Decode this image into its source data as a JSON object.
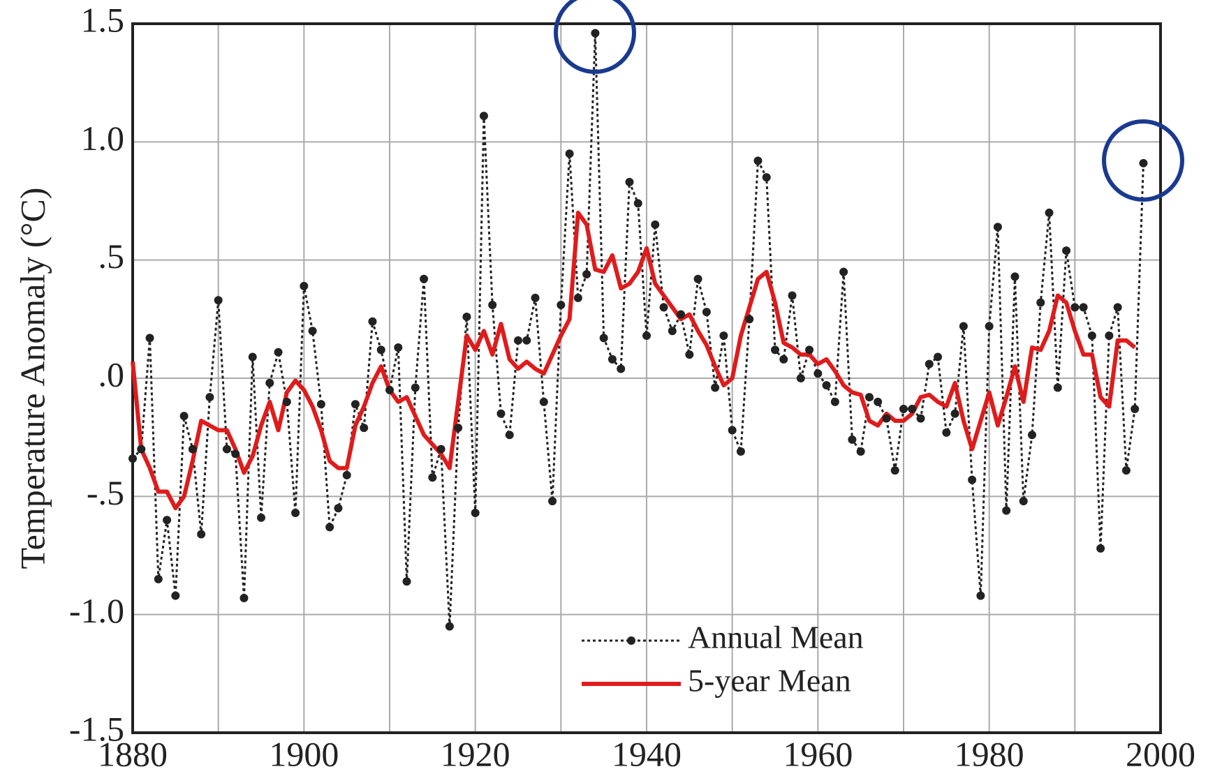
{
  "chart_data": {
    "type": "line",
    "ylabel": "Temperature Anomaly (°C)",
    "x": [
      1880,
      1881,
      1882,
      1883,
      1884,
      1885,
      1886,
      1887,
      1888,
      1889,
      1890,
      1891,
      1892,
      1893,
      1894,
      1895,
      1896,
      1897,
      1898,
      1899,
      1900,
      1901,
      1902,
      1903,
      1904,
      1905,
      1906,
      1907,
      1908,
      1909,
      1910,
      1911,
      1912,
      1913,
      1914,
      1915,
      1916,
      1917,
      1918,
      1919,
      1920,
      1921,
      1922,
      1923,
      1924,
      1925,
      1926,
      1927,
      1928,
      1929,
      1930,
      1931,
      1932,
      1933,
      1934,
      1935,
      1936,
      1937,
      1938,
      1939,
      1940,
      1941,
      1942,
      1943,
      1944,
      1945,
      1946,
      1947,
      1948,
      1949,
      1950,
      1951,
      1952,
      1953,
      1954,
      1955,
      1956,
      1957,
      1958,
      1959,
      1960,
      1961,
      1962,
      1963,
      1964,
      1965,
      1966,
      1967,
      1968,
      1969,
      1970,
      1971,
      1972,
      1973,
      1974,
      1975,
      1976,
      1977,
      1978,
      1979,
      1980,
      1981,
      1982,
      1983,
      1984,
      1985,
      1986,
      1987,
      1988,
      1989,
      1990,
      1991,
      1992,
      1993,
      1994,
      1995,
      1996,
      1997,
      1998
    ],
    "series": [
      {
        "name": "Annual Mean",
        "color": "#222222",
        "values": [
          -0.34,
          -0.3,
          0.17,
          -0.85,
          -0.6,
          -0.92,
          -0.16,
          -0.3,
          -0.66,
          -0.08,
          0.33,
          -0.3,
          -0.32,
          -0.93,
          0.09,
          -0.59,
          -0.02,
          0.11,
          -0.1,
          -0.57,
          0.39,
          0.2,
          -0.11,
          -0.63,
          -0.55,
          -0.41,
          -0.11,
          -0.21,
          0.24,
          0.12,
          -0.05,
          0.13,
          -0.86,
          -0.04,
          0.42,
          -0.42,
          -0.3,
          -1.05,
          -0.21,
          0.26,
          -0.57,
          1.11,
          0.31,
          -0.15,
          -0.24,
          0.16,
          0.16,
          0.34,
          -0.1,
          -0.52,
          0.31,
          0.95,
          0.34,
          0.44,
          1.46,
          0.17,
          0.08,
          0.04,
          0.83,
          0.74,
          0.18,
          0.65,
          0.3,
          0.2,
          0.27,
          0.1,
          0.42,
          0.28,
          -0.04,
          0.18,
          -0.22,
          -0.31,
          0.25,
          0.92,
          0.85,
          0.12,
          0.08,
          0.35,
          0.0,
          0.12,
          0.02,
          -0.03,
          -0.1,
          0.45,
          -0.26,
          -0.31,
          -0.08,
          -0.1,
          -0.17,
          -0.39,
          -0.13,
          -0.13,
          -0.17,
          0.06,
          0.09,
          -0.23,
          -0.15,
          0.22,
          -0.43,
          -0.92,
          0.22,
          0.64,
          -0.56,
          0.43,
          -0.52,
          -0.24,
          0.32,
          0.7,
          -0.04,
          0.54,
          0.3,
          0.3,
          0.18,
          -0.72,
          0.18,
          0.3,
          -0.39,
          -0.13,
          0.91
        ]
      },
      {
        "name": "5-year Mean",
        "color": "#e01b1b",
        "values": [
          0.07,
          -0.3,
          -0.38,
          -0.48,
          -0.48,
          -0.55,
          -0.5,
          -0.35,
          -0.18,
          -0.2,
          -0.22,
          -0.22,
          -0.3,
          -0.4,
          -0.33,
          -0.2,
          -0.1,
          -0.22,
          -0.06,
          -0.01,
          -0.05,
          -0.12,
          -0.22,
          -0.35,
          -0.38,
          -0.38,
          -0.2,
          -0.12,
          -0.02,
          0.05,
          -0.05,
          -0.1,
          -0.08,
          -0.16,
          -0.24,
          -0.28,
          -0.32,
          -0.38,
          -0.1,
          0.18,
          0.12,
          0.2,
          0.1,
          0.23,
          0.08,
          0.04,
          0.07,
          0.04,
          0.02,
          0.1,
          0.18,
          0.25,
          0.7,
          0.65,
          0.46,
          0.45,
          0.52,
          0.38,
          0.4,
          0.45,
          0.55,
          0.4,
          0.35,
          0.3,
          0.25,
          0.27,
          0.2,
          0.14,
          0.05,
          -0.03,
          0.0,
          0.18,
          0.3,
          0.42,
          0.45,
          0.32,
          0.15,
          0.13,
          0.1,
          0.1,
          0.06,
          0.08,
          0.03,
          -0.03,
          -0.06,
          -0.07,
          -0.18,
          -0.2,
          -0.15,
          -0.18,
          -0.18,
          -0.15,
          -0.08,
          -0.07,
          -0.1,
          -0.12,
          -0.02,
          -0.18,
          -0.3,
          -0.18,
          -0.06,
          -0.2,
          -0.08,
          0.05,
          -0.1,
          0.13,
          0.12,
          0.2,
          0.35,
          0.32,
          0.2,
          0.1,
          0.1,
          -0.08,
          -0.12,
          0.16,
          0.16,
          0.13,
          null
        ]
      }
    ],
    "xlim": [
      1880,
      2000
    ],
    "xticks": [
      1880,
      1900,
      1920,
      1940,
      1960,
      1980,
      2000
    ],
    "xminor_ticks": [
      1890,
      1910,
      1930,
      1950,
      1970,
      1990
    ],
    "ylim": [
      -1.5,
      1.5
    ],
    "yticks": [
      -1.5,
      {
        "value": -1.0,
        "label": "-1.0"
      },
      {
        "value": -0.5,
        "label": "-.5"
      },
      {
        "value": 0,
        "label": ".0"
      },
      {
        "value": 0.5,
        "label": ".5"
      },
      {
        "value": 1.0,
        "label": "1.0"
      },
      1.5
    ],
    "grid": true,
    "legend": "lower center"
  }
}
